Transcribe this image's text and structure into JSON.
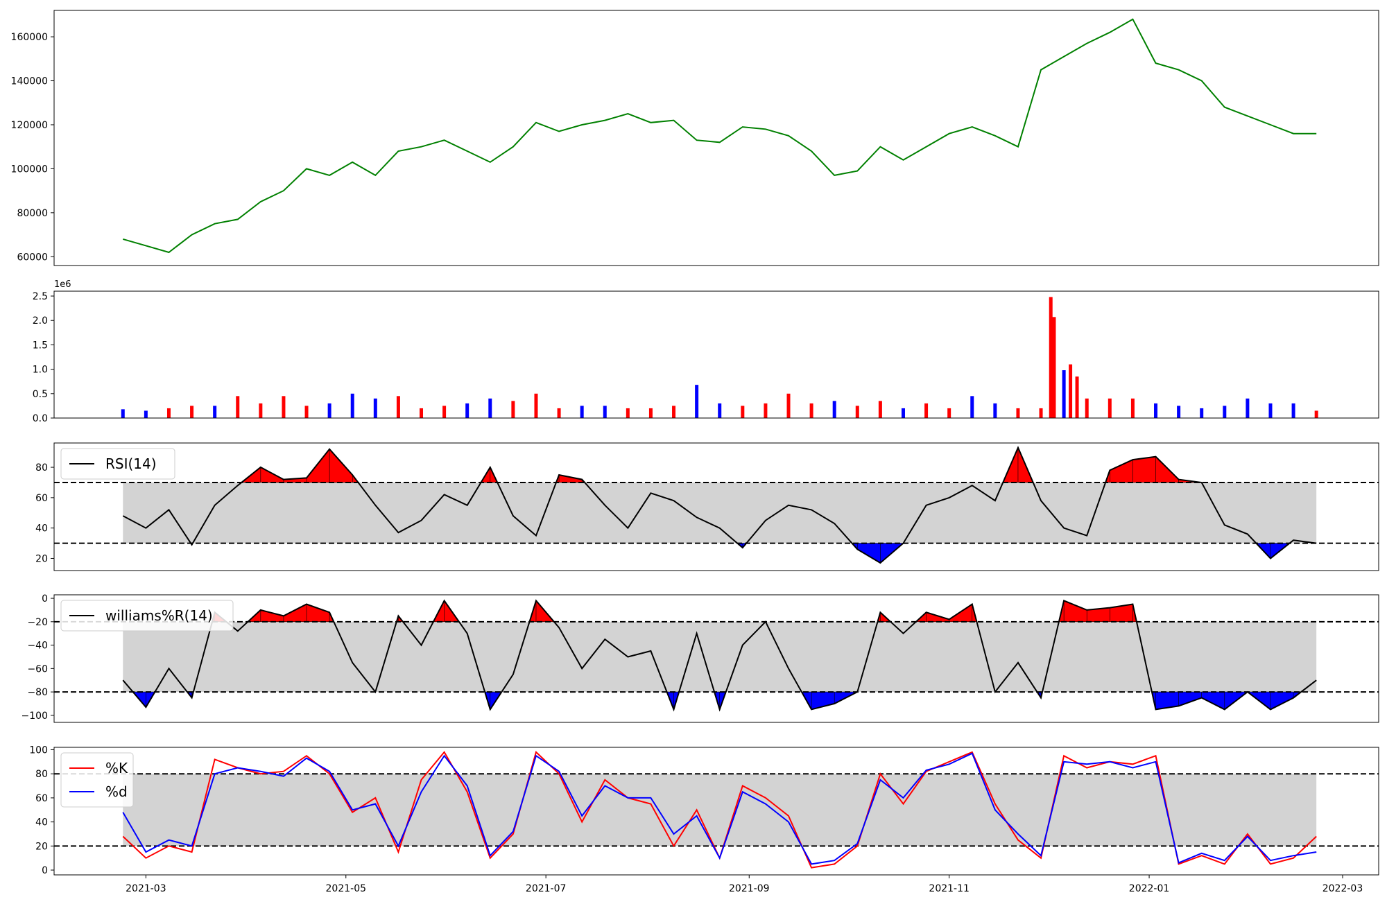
{
  "chart_data": [
    {
      "type": "line",
      "title": "",
      "xlabel": "",
      "ylabel": "",
      "x": [
        "2021-02-22",
        "2021-03-01",
        "2021-03-08",
        "2021-03-15",
        "2021-03-22",
        "2021-03-29",
        "2021-04-05",
        "2021-04-12",
        "2021-04-19",
        "2021-04-26",
        "2021-05-03",
        "2021-05-10",
        "2021-05-17",
        "2021-05-24",
        "2021-05-31",
        "2021-06-07",
        "2021-06-14",
        "2021-06-21",
        "2021-06-28",
        "2021-07-05",
        "2021-07-12",
        "2021-07-19",
        "2021-07-26",
        "2021-08-02",
        "2021-08-09",
        "2021-08-16",
        "2021-08-23",
        "2021-08-30",
        "2021-09-06",
        "2021-09-13",
        "2021-09-20",
        "2021-09-27",
        "2021-10-04",
        "2021-10-11",
        "2021-10-18",
        "2021-10-25",
        "2021-11-01",
        "2021-11-08",
        "2021-11-15",
        "2021-11-22",
        "2021-11-29",
        "2021-12-06",
        "2021-12-13",
        "2021-12-20",
        "2021-12-27",
        "2022-01-03",
        "2022-01-10",
        "2022-01-17",
        "2022-01-24",
        "2022-01-31",
        "2022-02-07",
        "2022-02-14",
        "2022-02-21"
      ],
      "series": [
        {
          "values": [
            68000,
            65000,
            62000,
            70000,
            75000,
            77000,
            85000,
            90000,
            100000,
            97000,
            103000,
            97000,
            108000,
            110000,
            113000,
            108000,
            103000,
            110000,
            121000,
            117000,
            120000,
            122000,
            125000,
            121000,
            122000,
            113000,
            112000,
            119000,
            118000,
            115000,
            108000,
            97000,
            99000,
            110000,
            104000,
            110000,
            116000,
            119000,
            115000,
            110000,
            145000,
            151000,
            157000,
            162000,
            168000,
            148000,
            145000,
            140000,
            128000,
            124000,
            120000,
            116000,
            116000
          ]
        }
      ],
      "yticks": [
        60000,
        80000,
        100000,
        120000,
        140000,
        160000
      ],
      "ylim": [
        56000,
        172000
      ],
      "xlim": [
        "2021-02-01",
        "2022-03-12"
      ],
      "grid": false,
      "color": "#008000"
    },
    {
      "type": "bar",
      "title": "",
      "xlabel": "",
      "ylabel": "",
      "offset_label": "1e6",
      "x": [
        "2021-02-22",
        "2021-03-01",
        "2021-03-08",
        "2021-03-15",
        "2021-03-22",
        "2021-03-29",
        "2021-04-05",
        "2021-04-12",
        "2021-04-19",
        "2021-04-26",
        "2021-05-03",
        "2021-05-10",
        "2021-05-17",
        "2021-05-24",
        "2021-05-31",
        "2021-06-07",
        "2021-06-14",
        "2021-06-21",
        "2021-06-28",
        "2021-07-05",
        "2021-07-12",
        "2021-07-19",
        "2021-07-26",
        "2021-08-02",
        "2021-08-09",
        "2021-08-16",
        "2021-08-23",
        "2021-08-30",
        "2021-09-06",
        "2021-09-13",
        "2021-09-20",
        "2021-09-27",
        "2021-10-04",
        "2021-10-11",
        "2021-10-18",
        "2021-10-25",
        "2021-11-01",
        "2021-11-08",
        "2021-11-15",
        "2021-11-22",
        "2021-11-29",
        "2021-12-02",
        "2021-12-03",
        "2021-12-06",
        "2021-12-08",
        "2021-12-10",
        "2021-12-13",
        "2021-12-20",
        "2021-12-27",
        "2022-01-03",
        "2022-01-10",
        "2022-01-17",
        "2022-01-24",
        "2022-01-31",
        "2022-02-07",
        "2022-02-14",
        "2022-02-21"
      ],
      "values": [
        180000,
        150000,
        200000,
        250000,
        250000,
        450000,
        300000,
        450000,
        250000,
        300000,
        500000,
        400000,
        450000,
        200000,
        250000,
        300000,
        400000,
        350000,
        500000,
        200000,
        250000,
        250000,
        200000,
        200000,
        250000,
        680000,
        300000,
        250000,
        300000,
        500000,
        300000,
        350000,
        250000,
        350000,
        200000,
        300000,
        200000,
        450000,
        300000,
        200000,
        200000,
        2480000,
        2070000,
        980000,
        1100000,
        850000,
        400000,
        400000,
        400000,
        300000,
        250000,
        200000,
        250000,
        400000,
        300000,
        300000,
        150000
      ],
      "direction": [
        "down",
        "down",
        "up",
        "up",
        "down",
        "up",
        "up",
        "up",
        "up",
        "down",
        "down",
        "down",
        "up",
        "up",
        "up",
        "down",
        "down",
        "up",
        "up",
        "up",
        "down",
        "down",
        "up",
        "up",
        "up",
        "down",
        "down",
        "up",
        "up",
        "up",
        "up",
        "down",
        "up",
        "up",
        "down",
        "up",
        "up",
        "down",
        "down",
        "up",
        "up",
        "up",
        "up",
        "down",
        "up",
        "up",
        "up",
        "up",
        "up",
        "down",
        "down",
        "down",
        "down",
        "down",
        "down",
        "down",
        "up"
      ],
      "yticks": [
        0.0,
        0.5,
        1.0,
        1.5,
        2.0,
        2.5
      ],
      "ytick_labels": [
        "0.0",
        "0.5",
        "1.0",
        "1.5",
        "2.0",
        "2.5"
      ],
      "ylim": [
        0,
        2.6
      ],
      "colors": {
        "up": "#ff0000",
        "down": "#0000ff"
      }
    },
    {
      "type": "line",
      "title": "",
      "xlabel": "",
      "ylabel": "",
      "x": [
        "2021-02-22",
        "2021-03-01",
        "2021-03-08",
        "2021-03-15",
        "2021-03-22",
        "2021-03-29",
        "2021-04-05",
        "2021-04-12",
        "2021-04-19",
        "2021-04-26",
        "2021-05-03",
        "2021-05-10",
        "2021-05-17",
        "2021-05-24",
        "2021-05-31",
        "2021-06-07",
        "2021-06-14",
        "2021-06-21",
        "2021-06-28",
        "2021-07-05",
        "2021-07-12",
        "2021-07-19",
        "2021-07-26",
        "2021-08-02",
        "2021-08-09",
        "2021-08-16",
        "2021-08-23",
        "2021-08-30",
        "2021-09-06",
        "2021-09-13",
        "2021-09-20",
        "2021-09-27",
        "2021-10-04",
        "2021-10-11",
        "2021-10-18",
        "2021-10-25",
        "2021-11-01",
        "2021-11-08",
        "2021-11-15",
        "2021-11-22",
        "2021-11-29",
        "2021-12-06",
        "2021-12-13",
        "2021-12-20",
        "2021-12-27",
        "2022-01-03",
        "2022-01-10",
        "2022-01-17",
        "2022-01-24",
        "2022-01-31",
        "2022-02-07",
        "2022-02-14",
        "2022-02-21"
      ],
      "series": [
        {
          "name": "RSI(14)",
          "values": [
            48,
            40,
            52,
            29,
            55,
            68,
            80,
            72,
            73,
            92,
            75,
            55,
            37,
            45,
            62,
            55,
            80,
            48,
            35,
            75,
            72,
            55,
            40,
            63,
            58,
            47,
            40,
            27,
            45,
            55,
            52,
            43,
            26,
            17,
            30,
            55,
            60,
            68,
            58,
            93,
            58,
            40,
            35,
            78,
            85,
            87,
            72,
            70,
            42,
            36,
            20,
            32,
            30
          ]
        }
      ],
      "yticks": [
        20,
        40,
        60,
        80
      ],
      "ylim": [
        12,
        96
      ],
      "bands": {
        "upper": 70,
        "lower": 30
      },
      "legend": {
        "position": "top-left",
        "entries": [
          "RSI(14)"
        ]
      },
      "colors": {
        "line": "#000000",
        "band": "#d3d3d3",
        "over": "#ff0000",
        "under": "#0000ff"
      }
    },
    {
      "type": "line",
      "title": "",
      "xlabel": "",
      "ylabel": "",
      "x": [
        "2021-02-22",
        "2021-03-01",
        "2021-03-08",
        "2021-03-15",
        "2021-03-22",
        "2021-03-29",
        "2021-04-05",
        "2021-04-12",
        "2021-04-19",
        "2021-04-26",
        "2021-05-03",
        "2021-05-10",
        "2021-05-17",
        "2021-05-24",
        "2021-05-31",
        "2021-06-07",
        "2021-06-14",
        "2021-06-21",
        "2021-06-28",
        "2021-07-05",
        "2021-07-12",
        "2021-07-19",
        "2021-07-26",
        "2021-08-02",
        "2021-08-09",
        "2021-08-16",
        "2021-08-23",
        "2021-08-30",
        "2021-09-06",
        "2021-09-13",
        "2021-09-20",
        "2021-09-27",
        "2021-10-04",
        "2021-10-11",
        "2021-10-18",
        "2021-10-25",
        "2021-11-01",
        "2021-11-08",
        "2021-11-15",
        "2021-11-22",
        "2021-11-29",
        "2021-12-06",
        "2021-12-13",
        "2021-12-20",
        "2021-12-27",
        "2022-01-03",
        "2022-01-10",
        "2022-01-17",
        "2022-01-24",
        "2022-01-31",
        "2022-02-07",
        "2022-02-14",
        "2022-02-21"
      ],
      "series": [
        {
          "name": "williams%R(14)",
          "values": [
            -70,
            -93,
            -60,
            -85,
            -12,
            -28,
            -10,
            -15,
            -5,
            -12,
            -55,
            -80,
            -15,
            -40,
            -2,
            -30,
            -95,
            -65,
            -2,
            -25,
            -60,
            -35,
            -50,
            -45,
            -95,
            -30,
            -95,
            -40,
            -20,
            -60,
            -95,
            -90,
            -80,
            -12,
            -30,
            -12,
            -18,
            -5,
            -80,
            -55,
            -85,
            -2,
            -10,
            -8,
            -5,
            -95,
            -92,
            -85,
            -95,
            -80,
            -95,
            -85,
            -70
          ]
        }
      ],
      "yticks": [
        -100,
        -80,
        -60,
        -40,
        -20,
        0
      ],
      "ylim": [
        -106,
        3
      ],
      "bands": {
        "upper": -20,
        "lower": -80
      },
      "legend": {
        "position": "top-left",
        "entries": [
          "williams%R(14)"
        ]
      },
      "colors": {
        "line": "#000000",
        "band": "#d3d3d3",
        "over": "#ff0000",
        "under": "#0000ff"
      }
    },
    {
      "type": "line",
      "title": "",
      "xlabel": "",
      "ylabel": "",
      "x": [
        "2021-02-22",
        "2021-03-01",
        "2021-03-08",
        "2021-03-15",
        "2021-03-22",
        "2021-03-29",
        "2021-04-05",
        "2021-04-12",
        "2021-04-19",
        "2021-04-26",
        "2021-05-03",
        "2021-05-10",
        "2021-05-17",
        "2021-05-24",
        "2021-05-31",
        "2021-06-07",
        "2021-06-14",
        "2021-06-21",
        "2021-06-28",
        "2021-07-05",
        "2021-07-12",
        "2021-07-19",
        "2021-07-26",
        "2021-08-02",
        "2021-08-09",
        "2021-08-16",
        "2021-08-23",
        "2021-08-30",
        "2021-09-06",
        "2021-09-13",
        "2021-09-20",
        "2021-09-27",
        "2021-10-04",
        "2021-10-11",
        "2021-10-18",
        "2021-10-25",
        "2021-11-01",
        "2021-11-08",
        "2021-11-15",
        "2021-11-22",
        "2021-11-29",
        "2021-12-06",
        "2021-12-13",
        "2021-12-20",
        "2021-12-27",
        "2022-01-03",
        "2022-01-10",
        "2022-01-17",
        "2022-01-24",
        "2022-01-31",
        "2022-02-07",
        "2022-02-14",
        "2022-02-21"
      ],
      "series": [
        {
          "name": "%K",
          "values": [
            28,
            10,
            20,
            15,
            92,
            85,
            80,
            82,
            95,
            80,
            48,
            60,
            15,
            75,
            98,
            65,
            10,
            30,
            98,
            80,
            40,
            75,
            60,
            55,
            20,
            50,
            10,
            70,
            60,
            45,
            2,
            5,
            20,
            80,
            55,
            82,
            90,
            98,
            55,
            25,
            10,
            95,
            85,
            90,
            88,
            95,
            5,
            12,
            5,
            30,
            5,
            10,
            28
          ]
        },
        {
          "name": "%d",
          "values": [
            48,
            15,
            25,
            20,
            80,
            85,
            82,
            78,
            93,
            82,
            50,
            55,
            20,
            65,
            95,
            70,
            12,
            32,
            95,
            82,
            45,
            70,
            60,
            60,
            30,
            45,
            10,
            65,
            55,
            40,
            5,
            8,
            22,
            75,
            60,
            83,
            88,
            97,
            50,
            30,
            12,
            90,
            88,
            90,
            85,
            90,
            6,
            14,
            8,
            28,
            8,
            12,
            15
          ]
        }
      ],
      "yticks": [
        0,
        20,
        40,
        60,
        80,
        100
      ],
      "ylim": [
        -4,
        102
      ],
      "bands": {
        "upper": 80,
        "lower": 20
      },
      "xticks": [
        "2021-03",
        "2021-05",
        "2021-07",
        "2021-09",
        "2021-11",
        "2022-01",
        "2022-03"
      ],
      "legend": {
        "position": "top-left",
        "entries": [
          "%K",
          "%d"
        ]
      },
      "colors": {
        "k": "#ff0000",
        "d": "#0000ff",
        "band": "#d3d3d3"
      }
    }
  ]
}
